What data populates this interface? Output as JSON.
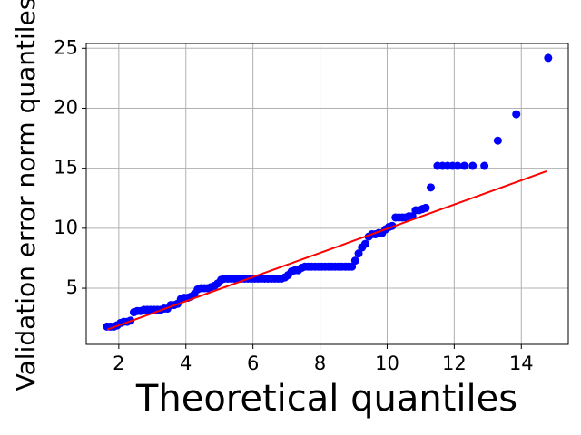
{
  "chart_data": {
    "type": "scatter",
    "xlabel": "Theoretical quantiles",
    "ylabel": "Validation error norm quantiles",
    "xlim": [
      1.03,
      15.4
    ],
    "ylim": [
      0.32,
      25.4
    ],
    "xticks": [
      2,
      4,
      6,
      8,
      10,
      12,
      14
    ],
    "yticks": [
      5,
      10,
      15,
      20,
      25
    ],
    "grid": true,
    "series": [
      {
        "type": "scatter",
        "color": "#0000ff",
        "x": [
          1.65,
          1.75,
          1.85,
          1.95,
          2.05,
          2.15,
          2.25,
          2.35,
          2.45,
          2.55,
          2.65,
          2.75,
          2.85,
          2.95,
          3.05,
          3.15,
          3.25,
          3.35,
          3.45,
          3.55,
          3.65,
          3.75,
          3.85,
          3.95,
          4.05,
          4.15,
          4.25,
          4.35,
          4.45,
          4.55,
          4.65,
          4.75,
          4.85,
          4.95,
          5.05,
          5.15,
          5.25,
          5.35,
          5.45,
          5.55,
          5.65,
          5.75,
          5.85,
          5.95,
          6.05,
          6.15,
          6.25,
          6.35,
          6.45,
          6.55,
          6.65,
          6.75,
          6.85,
          6.95,
          7.05,
          7.15,
          7.25,
          7.35,
          7.45,
          7.55,
          7.65,
          7.75,
          7.85,
          7.95,
          8.05,
          8.15,
          8.25,
          8.35,
          8.45,
          8.55,
          8.65,
          8.75,
          8.85,
          8.95,
          9.05,
          9.15,
          9.25,
          9.35,
          9.45,
          9.55,
          9.65,
          9.75,
          9.85,
          9.95,
          10.05,
          10.15,
          10.25,
          10.35,
          10.45,
          10.55,
          10.65,
          10.75,
          10.85,
          10.95,
          11.05,
          11.15,
          11.3,
          11.5,
          11.65,
          11.8,
          11.95,
          12.1,
          12.3,
          12.55,
          12.9,
          13.3,
          13.85,
          14.8
        ],
        "values": [
          1.8,
          1.8,
          1.8,
          1.9,
          2.1,
          2.2,
          2.2,
          2.3,
          3.0,
          3.1,
          3.1,
          3.2,
          3.2,
          3.2,
          3.2,
          3.2,
          3.2,
          3.3,
          3.3,
          3.6,
          3.6,
          3.7,
          4.1,
          4.2,
          4.2,
          4.3,
          4.5,
          4.9,
          5.0,
          5.0,
          5.0,
          5.1,
          5.2,
          5.4,
          5.7,
          5.8,
          5.8,
          5.8,
          5.8,
          5.8,
          5.8,
          5.8,
          5.8,
          5.8,
          5.8,
          5.8,
          5.8,
          5.8,
          5.8,
          5.8,
          5.8,
          5.8,
          5.8,
          5.9,
          6.1,
          6.4,
          6.5,
          6.5,
          6.7,
          6.8,
          6.8,
          6.8,
          6.8,
          6.8,
          6.8,
          6.8,
          6.8,
          6.8,
          6.8,
          6.8,
          6.8,
          6.8,
          6.8,
          6.8,
          7.3,
          7.9,
          8.4,
          8.7,
          9.3,
          9.5,
          9.5,
          9.6,
          9.6,
          9.9,
          10.1,
          10.2,
          10.9,
          10.9,
          10.9,
          10.9,
          11.0,
          11.0,
          11.5,
          11.5,
          11.6,
          11.7,
          13.4,
          15.2,
          15.2,
          15.2,
          15.2,
          15.2,
          15.2,
          15.2,
          15.2,
          17.3,
          19.5,
          24.2
        ]
      },
      {
        "type": "line",
        "color": "#ff0000",
        "x": [
          1.65,
          14.75
        ],
        "values": [
          1.55,
          14.75
        ]
      }
    ]
  }
}
